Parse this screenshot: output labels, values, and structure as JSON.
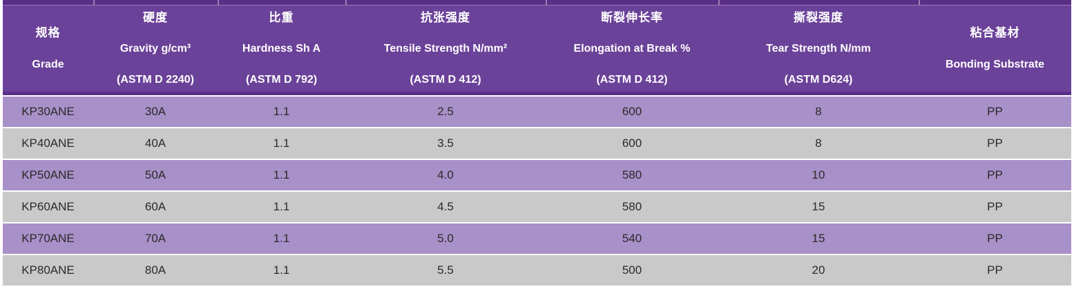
{
  "colors": {
    "header_purple": "#6B4299",
    "dark_purple": "#5B2E87",
    "row_purple": "#A890C8",
    "row_gray": "#C9C9C9",
    "header_text": "#FFFFFF",
    "body_text": "#2A2A2A",
    "background": "#FFFFFF"
  },
  "table": {
    "columns": [
      {
        "zh": "规格",
        "en": "Grade",
        "astm": ""
      },
      {
        "zh": "硬度",
        "en": "Gravity g/cm³",
        "astm": "(ASTM D 2240)"
      },
      {
        "zh": "比重",
        "en": "Hardness Sh A",
        "astm": "(ASTM D 792)"
      },
      {
        "zh": "抗张强度",
        "en": "Tensile Strength N/mm²",
        "astm": "(ASTM D 412)"
      },
      {
        "zh": "断裂伸长率",
        "en": "Elongation at Break %",
        "astm": "(ASTM D 412)"
      },
      {
        "zh": "撕裂强度",
        "en": "Tear Strength N/mm",
        "astm": "(ASTM D624)"
      },
      {
        "zh": "粘合基材",
        "en": "Bonding Substrate",
        "astm": ""
      }
    ],
    "rows": [
      [
        "KP30ANE",
        "30A",
        "1.1",
        "2.5",
        "600",
        "8",
        "PP"
      ],
      [
        "KP40ANE",
        "40A",
        "1.1",
        "3.5",
        "600",
        "8",
        "PP"
      ],
      [
        "KP50ANE",
        "50A",
        "1.1",
        "4.0",
        "580",
        "10",
        "PP"
      ],
      [
        "KP60ANE",
        "60A",
        "1.1",
        "4.5",
        "580",
        "15",
        "PP"
      ],
      [
        "KP70ANE",
        "70A",
        "1.1",
        "5.0",
        "540",
        "15",
        "PP"
      ],
      [
        "KP80ANE",
        "80A",
        "1.1",
        "5.5",
        "500",
        "20",
        "PP"
      ]
    ]
  }
}
